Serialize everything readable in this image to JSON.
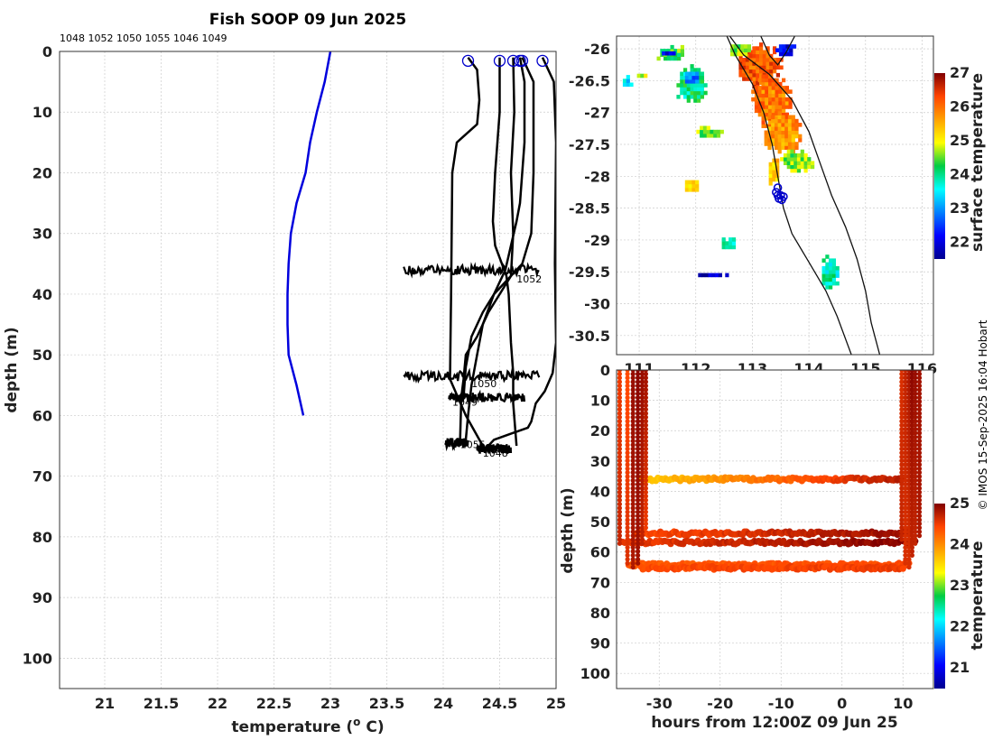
{
  "figure": {
    "title": "Fish SOOP 09 Jun 2025",
    "credit": "© IMOS 15-Sep-2025 16:04 Hobart",
    "colors": {
      "profile": "#000000",
      "climatology": "#0000dd",
      "surface_marker": "#0000cc"
    }
  },
  "chart_data": [
    {
      "id": "profiles",
      "type": "line",
      "title": "Fish SOOP 09 Jun 2025",
      "xlabel": "temperature (° C)",
      "ylabel": "depth (m)",
      "xlim": [
        20.6,
        25.0
      ],
      "ylim": [
        105,
        0
      ],
      "xticks": [
        21,
        21.5,
        22,
        22.5,
        23,
        23.5,
        24,
        24.5,
        25
      ],
      "yticks": [
        0,
        10,
        20,
        30,
        40,
        50,
        60,
        70,
        80,
        90,
        100
      ],
      "grid": true,
      "top_labels": [
        "1048",
        "1052",
        "1050",
        "1055",
        "1046",
        "1049"
      ],
      "surface_markers": [
        {
          "temperature": 24.22,
          "depth": 0.8
        },
        {
          "temperature": 24.5,
          "depth": 0.8
        },
        {
          "temperature": 24.62,
          "depth": 0.8
        },
        {
          "temperature": 24.68,
          "depth": 0.8
        },
        {
          "temperature": 24.7,
          "depth": 0.8
        },
        {
          "temperature": 24.88,
          "depth": 0.8
        }
      ],
      "climatology": {
        "name": "climatology",
        "points": [
          [
            23.0,
            0
          ],
          [
            22.95,
            5
          ],
          [
            22.88,
            10
          ],
          [
            22.82,
            15
          ],
          [
            22.78,
            20
          ],
          [
            22.7,
            25
          ],
          [
            22.65,
            30
          ],
          [
            22.63,
            35
          ],
          [
            22.62,
            40
          ],
          [
            22.62,
            45
          ],
          [
            22.63,
            50
          ],
          [
            22.7,
            55
          ],
          [
            22.76,
            60
          ]
        ]
      },
      "series": [
        {
          "name": "1048",
          "points": [
            [
              24.22,
              1
            ],
            [
              24.3,
              3
            ],
            [
              24.32,
              8
            ],
            [
              24.3,
              12
            ],
            [
              24.12,
              15
            ],
            [
              24.08,
              20
            ],
            [
              24.07,
              40
            ],
            [
              24.06,
              54
            ],
            [
              24.2,
              60
            ],
            [
              24.35,
              65
            ]
          ]
        },
        {
          "name": "1052",
          "points": [
            [
              24.5,
              1
            ],
            [
              24.5,
              10
            ],
            [
              24.46,
              20
            ],
            [
              24.44,
              28
            ],
            [
              24.46,
              32
            ],
            [
              24.56,
              37
            ],
            [
              24.58,
              40
            ],
            [
              24.6,
              48
            ],
            [
              24.62,
              53
            ],
            [
              24.62,
              58
            ],
            [
              24.65,
              65
            ]
          ]
        },
        {
          "name": "1050",
          "points": [
            [
              24.62,
              1
            ],
            [
              24.63,
              10
            ],
            [
              24.6,
              20
            ],
            [
              24.62,
              30
            ],
            [
              24.6,
              37
            ],
            [
              24.5,
              40
            ],
            [
              24.4,
              43
            ],
            [
              24.3,
              47
            ],
            [
              24.2,
              50
            ],
            [
              24.18,
              54
            ],
            [
              24.16,
              57
            ],
            [
              24.15,
              64
            ]
          ]
        },
        {
          "name": "1055",
          "points": [
            [
              24.68,
              1
            ],
            [
              24.72,
              5
            ],
            [
              24.72,
              15
            ],
            [
              24.7,
              20
            ],
            [
              24.68,
              25
            ],
            [
              24.65,
              28
            ],
            [
              24.6,
              32
            ],
            [
              24.55,
              36
            ],
            [
              24.45,
              40
            ],
            [
              24.35,
              45
            ],
            [
              24.3,
              50
            ],
            [
              24.25,
              55
            ],
            [
              24.22,
              60
            ],
            [
              24.2,
              64
            ]
          ]
        },
        {
          "name": "1046",
          "points": [
            [
              24.7,
              1
            ],
            [
              24.8,
              5
            ],
            [
              24.8,
              20
            ],
            [
              24.78,
              30
            ],
            [
              24.7,
              35
            ],
            [
              24.55,
              38
            ],
            [
              24.45,
              40
            ],
            [
              24.35,
              43
            ],
            [
              24.25,
              47
            ],
            [
              24.2,
              52
            ],
            [
              24.18,
              57
            ]
          ]
        },
        {
          "name": "1049",
          "points": [
            [
              24.88,
              1
            ],
            [
              24.98,
              5
            ],
            [
              25.0,
              15
            ],
            [
              24.99,
              35
            ],
            [
              25.0,
              48
            ],
            [
              24.97,
              53
            ],
            [
              24.9,
              56
            ],
            [
              24.82,
              58
            ],
            [
              24.78,
              61
            ],
            [
              24.75,
              62
            ],
            [
              24.6,
              63
            ],
            [
              24.45,
              64
            ],
            [
              24.4,
              65
            ]
          ]
        }
      ],
      "inline_labels": [
        {
          "text": "1052",
          "temperature": 24.65,
          "depth": 37.5
        },
        {
          "text": "1050",
          "temperature": 24.25,
          "depth": 54.7
        },
        {
          "text": "1049",
          "temperature": 24.08,
          "depth": 57.8
        },
        {
          "text": "1055",
          "temperature": 24.15,
          "depth": 64.8
        },
        {
          "text": "1048",
          "temperature": 24.35,
          "depth": 66.2
        }
      ],
      "spikes": [
        {
          "depth": 36,
          "temperature_range": [
            23.65,
            24.85
          ]
        },
        {
          "depth": 53.5,
          "temperature_range": [
            23.65,
            24.85
          ]
        },
        {
          "depth": 57,
          "temperature_range": [
            24.05,
            24.72
          ]
        },
        {
          "depth": 64.5,
          "temperature_range": [
            24.02,
            24.22
          ]
        },
        {
          "depth": 65.5,
          "temperature_range": [
            24.3,
            24.6
          ]
        }
      ]
    },
    {
      "id": "map",
      "type": "heatmap",
      "title": "",
      "xlabel": "",
      "ylabel": "",
      "xlim": [
        110.6,
        116.2
      ],
      "ylim": [
        -30.8,
        -25.8
      ],
      "xticks": [
        "111",
        "112",
        "113",
        "114",
        "115",
        "116"
      ],
      "yticks": [
        -26,
        -26.5,
        -27,
        -27.5,
        -28,
        -28.5,
        -29,
        -29.5,
        -30,
        -30.5
      ],
      "colorbar": {
        "label": "surface temperature",
        "range": [
          21.5,
          27
        ],
        "ticks": [
          22,
          23,
          24,
          25,
          26,
          27
        ]
      },
      "track_points": [
        [
          113.45,
          -28.18
        ],
        [
          113.42,
          -28.25
        ],
        [
          113.5,
          -28.3
        ],
        [
          113.55,
          -28.32
        ],
        [
          113.52,
          -28.37
        ],
        [
          113.47,
          -28.35
        ],
        [
          113.45,
          -28.3
        ]
      ],
      "patches": [
        {
          "lon": 113.1,
          "lat": -26.3,
          "rx": 0.4,
          "ry": 0.38,
          "value": 26.2
        },
        {
          "lon": 113.3,
          "lat": -26.85,
          "rx": 0.38,
          "ry": 0.45,
          "value": 25.9
        },
        {
          "lon": 113.5,
          "lat": -27.35,
          "rx": 0.35,
          "ry": 0.35,
          "value": 25.7
        },
        {
          "lon": 113.75,
          "lat": -27.8,
          "rx": 0.32,
          "ry": 0.2,
          "value": 24.6
        },
        {
          "lon": 113.35,
          "lat": -27.95,
          "rx": 0.12,
          "ry": 0.25,
          "value": 25.3
        },
        {
          "lon": 111.9,
          "lat": -26.6,
          "rx": 0.3,
          "ry": 0.3,
          "value": 24.0
        },
        {
          "lon": 111.9,
          "lat": -26.5,
          "rx": 0.15,
          "ry": 0.1,
          "value": 22.8
        },
        {
          "lon": 111.55,
          "lat": -26.1,
          "rx": 0.3,
          "ry": 0.14,
          "value": 24.4
        },
        {
          "lon": 112.75,
          "lat": -26.05,
          "rx": 0.2,
          "ry": 0.12,
          "value": 24.6
        },
        {
          "lon": 110.75,
          "lat": -26.55,
          "rx": 0.1,
          "ry": 0.1,
          "value": 23.3
        },
        {
          "lon": 111.0,
          "lat": -26.45,
          "rx": 0.1,
          "ry": 0.06,
          "value": 24.8
        },
        {
          "lon": 112.2,
          "lat": -27.35,
          "rx": 0.25,
          "ry": 0.1,
          "value": 24.6
        },
        {
          "lon": 111.9,
          "lat": -28.2,
          "rx": 0.15,
          "ry": 0.1,
          "value": 25.1
        },
        {
          "lon": 114.35,
          "lat": -29.55,
          "rx": 0.18,
          "ry": 0.28,
          "value": 23.8
        },
        {
          "lon": 112.55,
          "lat": -29.1,
          "rx": 0.15,
          "ry": 0.1,
          "value": 23.7
        },
        {
          "lon": 112.2,
          "lat": -29.6,
          "rx": 0.4,
          "ry": 0.04,
          "value": 21.8
        },
        {
          "lon": 113.55,
          "lat": -26.05,
          "rx": 0.2,
          "ry": 0.12,
          "value": 22.0
        },
        {
          "lon": 111.5,
          "lat": -26.1,
          "rx": 0.1,
          "ry": 0.06,
          "value": 21.9
        }
      ]
    },
    {
      "id": "timeline",
      "type": "scatter",
      "title": "",
      "xlabel": "hours from 12:00Z 09 Jun 25",
      "ylabel": "depth (m)",
      "xlim": [
        -37,
        15
      ],
      "ylim": [
        105,
        0
      ],
      "xticks": [
        -30,
        -20,
        -10,
        0,
        10
      ],
      "yticks": [
        0,
        10,
        20,
        30,
        40,
        50,
        60,
        70,
        80,
        90,
        100
      ],
      "colorbar": {
        "label": "temperature",
        "range": [
          20.5,
          25
        ],
        "ticks": [
          21,
          22,
          23,
          24,
          25
        ]
      },
      "verticals": [
        {
          "hour": -36.5,
          "depth_range": [
            0,
            58
          ],
          "temp_range": [
            24.5,
            24.7
          ]
        },
        {
          "hour": -35.2,
          "depth_range": [
            0,
            64
          ],
          "temp_range": [
            24.4,
            24.6
          ]
        },
        {
          "hour": -34.3,
          "depth_range": [
            0,
            65
          ],
          "temp_range": [
            24.9,
            24.8
          ]
        },
        {
          "hour": -33.5,
          "depth_range": [
            0,
            64
          ],
          "temp_range": [
            24.95,
            24.85
          ]
        },
        {
          "hour": -32.8,
          "depth_range": [
            0,
            58
          ],
          "temp_range": [
            24.9,
            24.7
          ]
        },
        {
          "hour": -32.2,
          "depth_range": [
            0,
            53
          ],
          "temp_range": [
            24.85,
            24.5
          ]
        },
        {
          "hour": 9.8,
          "depth_range": [
            0,
            56
          ],
          "temp_range": [
            24.6,
            24.7
          ]
        },
        {
          "hour": 10.4,
          "depth_range": [
            0,
            64
          ],
          "temp_range": [
            24.7,
            24.6
          ]
        },
        {
          "hour": 11.0,
          "depth_range": [
            0,
            65
          ],
          "temp_range": [
            24.8,
            24.6
          ]
        },
        {
          "hour": 11.5,
          "depth_range": [
            0,
            62
          ],
          "temp_range": [
            24.95,
            24.7
          ]
        },
        {
          "hour": 12.0,
          "depth_range": [
            0,
            58
          ],
          "temp_range": [
            24.9,
            24.7
          ]
        },
        {
          "hour": 12.7,
          "depth_range": [
            0,
            55
          ],
          "temp_range": [
            24.85,
            24.8
          ]
        }
      ],
      "horizontals": [
        {
          "depth": 36,
          "hour_range": [
            -33,
            10
          ],
          "temp_range": [
            23.6,
            24.8
          ]
        },
        {
          "depth": 53.8,
          "hour_range": [
            -34,
            11
          ],
          "temp_range": [
            24.4,
            24.9
          ]
        },
        {
          "depth": 56.8,
          "hour_range": [
            -36,
            12
          ],
          "temp_range": [
            24.5,
            25.0
          ]
        },
        {
          "depth": 64.2,
          "hour_range": [
            -35,
            11
          ],
          "temp_range": [
            24.3,
            24.4
          ]
        },
        {
          "depth": 65.2,
          "hour_range": [
            -33,
            10
          ],
          "temp_range": [
            24.4,
            24.5
          ]
        }
      ]
    }
  ]
}
